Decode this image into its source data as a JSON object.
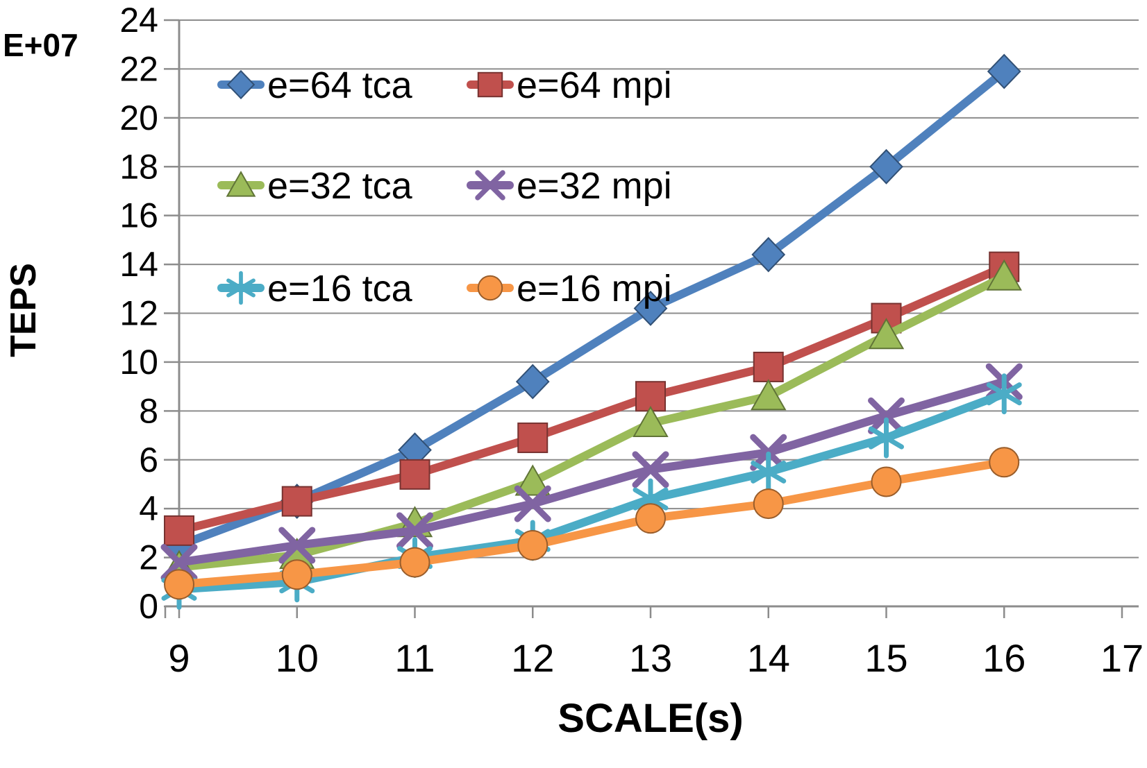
{
  "chart_data": {
    "type": "line",
    "title": "",
    "xlabel": "SCALE(s)",
    "ylabel": "TEPS",
    "y_unit_label": "E+07",
    "x": [
      9,
      10,
      11,
      12,
      13,
      14,
      15,
      16
    ],
    "x_axis": {
      "min": 9,
      "max": 17,
      "tick_step": 1,
      "tick_labels": [
        "9",
        "10",
        "11",
        "12",
        "13",
        "14",
        "15",
        "16",
        "17"
      ]
    },
    "y_axis": {
      "min": 0,
      "max": 24,
      "tick_step": 2,
      "tick_labels": [
        "0",
        "2",
        "4",
        "6",
        "8",
        "10",
        "12",
        "14",
        "16",
        "18",
        "20",
        "22",
        "24"
      ]
    },
    "grid": "horizontal-only",
    "legend_position": "inside-plot-top-left-two-columns",
    "series": [
      {
        "name": "e=64 tca",
        "marker": "diamond",
        "color": "#4F81BD",
        "edge": "#315075",
        "values": [
          2.5,
          4.3,
          6.4,
          9.2,
          12.2,
          14.4,
          18.0,
          21.9
        ]
      },
      {
        "name": "e=64 mpi",
        "marker": "square",
        "color": "#C0504D",
        "edge": "#773230",
        "values": [
          3.1,
          4.3,
          5.4,
          6.9,
          8.6,
          9.8,
          11.8,
          13.9
        ]
      },
      {
        "name": "e=32 tca",
        "marker": "triangle",
        "color": "#9BBB59",
        "edge": "#607437",
        "values": [
          1.6,
          2.1,
          3.4,
          5.1,
          7.5,
          8.6,
          11.1,
          13.5
        ]
      },
      {
        "name": "e=32 mpi",
        "marker": "x",
        "color": "#8064A2",
        "edge": "#8064A2",
        "values": [
          1.8,
          2.5,
          3.1,
          4.2,
          5.6,
          6.3,
          7.8,
          9.2
        ]
      },
      {
        "name": "e=16 tca",
        "marker": "asterisk",
        "color": "#4BACC6",
        "edge": "#4BACC6",
        "values": [
          0.7,
          1.0,
          2.0,
          2.7,
          4.4,
          5.5,
          6.9,
          8.7
        ]
      },
      {
        "name": "e=16 mpi",
        "marker": "circle",
        "color": "#F79646",
        "edge": "#995D2B",
        "values": [
          0.9,
          1.3,
          1.8,
          2.5,
          3.6,
          4.2,
          5.1,
          5.9
        ]
      }
    ],
    "colors": {
      "background": "#FFFFFF",
      "gridline": "#8C8C8C",
      "axis": "#8C8C8C",
      "text": "#000000"
    }
  }
}
